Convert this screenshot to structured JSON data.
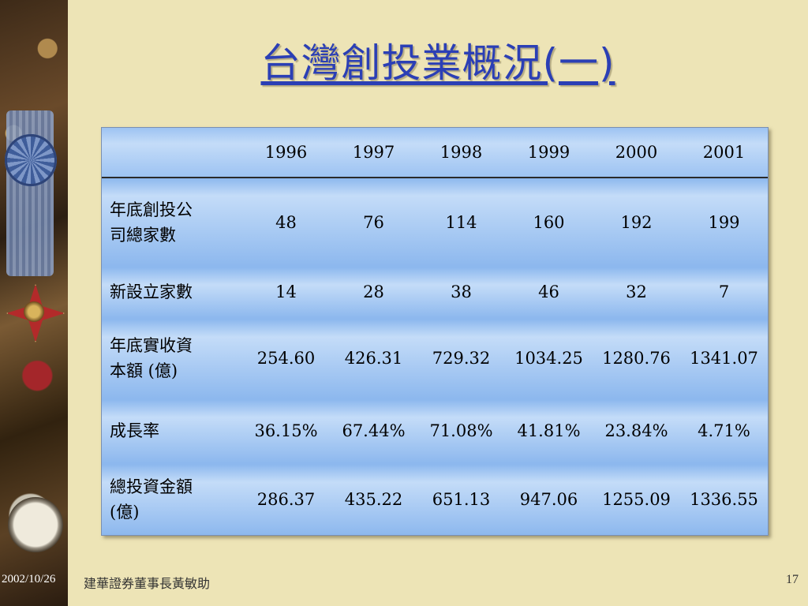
{
  "slide": {
    "title": "台灣創投業概況(一)",
    "footer_date": "2002/10/26",
    "footer_center": "建華證券董事長黃敏助",
    "page_number": "17"
  },
  "table": {
    "years": [
      "1996",
      "1997",
      "1998",
      "1999",
      "2000",
      "2001"
    ],
    "rows": [
      {
        "label": "年底創投公司總家數",
        "values": [
          "48",
          "76",
          "114",
          "160",
          "192",
          "199"
        ]
      },
      {
        "label": "新設立家數",
        "values": [
          "14",
          "28",
          "38",
          "46",
          "32",
          "7"
        ]
      },
      {
        "label": "年底實收資本額 (億)",
        "values": [
          "254.60",
          "426.31",
          "729.32",
          "1034.25",
          "1280.76",
          "1341.07"
        ]
      },
      {
        "label": "成長率",
        "values": [
          "36.15%",
          "67.44%",
          "71.08%",
          "41.81%",
          "23.84%",
          "4.71%"
        ]
      },
      {
        "label": "總投資金額(億)",
        "values": [
          "286.37",
          "435.22",
          "651.13",
          "947.06",
          "1255.09",
          "1336.55"
        ]
      }
    ]
  }
}
